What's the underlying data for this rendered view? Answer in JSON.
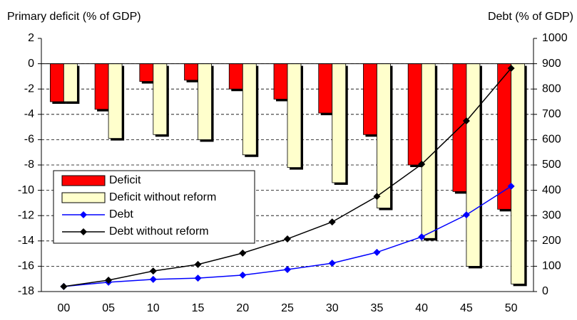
{
  "chart_data": {
    "type": "combo",
    "y_label": "Primary deficit (% of GDP)",
    "y2_label": "Debt (% of GDP)",
    "categories": [
      "00",
      "05",
      "10",
      "15",
      "20",
      "25",
      "30",
      "35",
      "40",
      "45",
      "50"
    ],
    "series": [
      {
        "name": "Deficit",
        "type": "bar",
        "color": "#ff0000",
        "values": [
          -3.0,
          -3.6,
          -1.4,
          -1.3,
          -2.0,
          -2.8,
          -3.9,
          -5.6,
          -8.0,
          -10.1,
          -11.5
        ]
      },
      {
        "name": "Deficit without reform",
        "type": "bar",
        "color": "#ffffcc",
        "values": [
          -3.0,
          -5.9,
          -5.6,
          -6.0,
          -7.2,
          -8.2,
          -9.4,
          -11.4,
          -13.8,
          -16.0,
          -17.4
        ]
      },
      {
        "name": "Debt",
        "type": "line",
        "axis": "y2",
        "color": "#0000ff",
        "values": [
          20,
          37,
          48,
          53,
          65,
          87,
          112,
          155,
          216,
          303,
          416
        ]
      },
      {
        "name": "Debt without reform",
        "type": "line",
        "axis": "y2",
        "color": "#000000",
        "values": [
          20,
          45,
          81,
          107,
          152,
          208,
          275,
          376,
          503,
          674,
          882
        ]
      }
    ],
    "ylim": [
      -18,
      2
    ],
    "yticks": [
      2,
      0,
      -2,
      -4,
      -6,
      -8,
      -10,
      -12,
      -14,
      -16,
      -18
    ],
    "y2lim": [
      0,
      1000
    ],
    "y2ticks": [
      0,
      100,
      200,
      300,
      400,
      500,
      600,
      700,
      800,
      900,
      1000
    ],
    "grid": true
  }
}
